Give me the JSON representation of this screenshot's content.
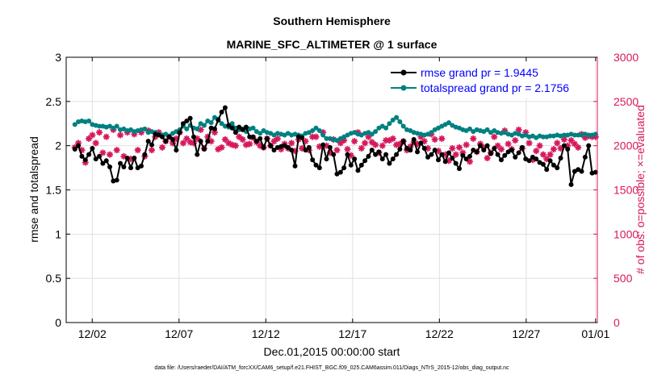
{
  "chart_data": {
    "type": "line",
    "title": "Southern Hemisphere",
    "subtitle": "MARINE_SFC_ALTIMETER @ 1 surface",
    "xlabel": "Dec.01,2015 00:00:00 start",
    "ylabel": "rmse and totalspread",
    "y2label": "# of obs: o=possible; ×=evaluated",
    "footnote": "data file: /Users/raeder/DAI/ATM_forcXX/CAM6_setup/f.e21.FHIST_BGC.f09_025.CAM6assim.011/Diags_NTrS_2015-12/obs_diag_output.nc",
    "xlim": [
      0.5,
      31.1
    ],
    "ylim": [
      0,
      3
    ],
    "y2lim": [
      0,
      3000
    ],
    "grid": true,
    "legend_position": "top-right",
    "x_ticks": [
      {
        "value": 2,
        "label": "12/02"
      },
      {
        "value": 7,
        "label": "12/07"
      },
      {
        "value": 12,
        "label": "12/12"
      },
      {
        "value": 17,
        "label": "12/17"
      },
      {
        "value": 22,
        "label": "12/22"
      },
      {
        "value": 27,
        "label": "12/27"
      },
      {
        "value": 31,
        "label": "01/01"
      }
    ],
    "y_ticks": [
      "0",
      "0.5",
      "1",
      "1.5",
      "2",
      "2.5",
      "3"
    ],
    "y2_ticks": [
      "0",
      "500",
      "1000",
      "1500",
      "2000",
      "2500",
      "3000"
    ],
    "colors": {
      "rmse": "#000000",
      "totalspread": "#008080",
      "obs": "#d6185c",
      "legend_text": "#0000ff"
    },
    "series": [
      {
        "name": "rmse grand pr = 1.9445",
        "axis": "left",
        "values": [
          1.96,
          2.0,
          1.88,
          1.84,
          1.9,
          1.97,
          1.85,
          1.88,
          1.8,
          1.83,
          1.76,
          1.6,
          1.61,
          1.8,
          1.76,
          1.86,
          1.75,
          1.86,
          1.75,
          1.77,
          1.9,
          2.05,
          2.01,
          2.13,
          2.12,
          2.1,
          2.05,
          2.1,
          2.07,
          1.95,
          2.15,
          2.25,
          2.28,
          2.31,
          2.1,
          1.9,
          2.05,
          1.96,
          2.05,
          2.2,
          2.19,
          2.29,
          2.38,
          2.43,
          2.23,
          2.2,
          2.15,
          2.21,
          2.18,
          2.21,
          2.1,
          2.1,
          2.05,
          2.08,
          1.98,
          2.08,
          2.0,
          1.95,
          1.98,
          1.99,
          2.0,
          1.98,
          1.95,
          1.77,
          2.1,
          2.09,
          1.95,
          1.98,
          1.84,
          1.78,
          1.75,
          2.01,
          1.85,
          1.98,
          1.9,
          1.68,
          1.7,
          1.75,
          1.9,
          1.78,
          1.85,
          1.72,
          1.78,
          1.83,
          1.88,
          1.95,
          1.9,
          1.93,
          1.85,
          1.9,
          1.8,
          1.85,
          1.9,
          1.96,
          2.05,
          1.97,
          1.95,
          2.07,
          1.93,
          2.03,
          1.97,
          1.87,
          1.9,
          1.95,
          1.84,
          1.9,
          1.82,
          1.92,
          1.86,
          1.8,
          1.74,
          1.89,
          1.85,
          1.88,
          1.95,
          1.93,
          2.0,
          1.95,
          2.0,
          1.91,
          1.97,
          1.9,
          1.84,
          1.89,
          1.93,
          1.95,
          1.87,
          1.92,
          1.98,
          1.85,
          1.83,
          1.87,
          1.85,
          1.81,
          1.79,
          1.73,
          1.83,
          1.78,
          1.75,
          1.86,
          2.0,
          1.96,
          1.56,
          1.71,
          1.73,
          1.71,
          1.87,
          2.0,
          1.69,
          1.7
        ]
      },
      {
        "name": "totalspread grand pr = 2.1756",
        "axis": "left",
        "values": [
          2.24,
          2.27,
          2.28,
          2.27,
          2.28,
          2.24,
          2.23,
          2.22,
          2.22,
          2.21,
          2.22,
          2.2,
          2.22,
          2.18,
          2.19,
          2.17,
          2.18,
          2.16,
          2.17,
          2.18,
          2.19,
          2.15,
          2.16,
          2.15,
          2.13,
          2.12,
          2.13,
          2.11,
          2.14,
          2.16,
          2.18,
          2.22,
          2.19,
          2.23,
          2.2,
          2.19,
          2.25,
          2.23,
          2.28,
          2.26,
          2.32,
          2.3,
          2.25,
          2.22,
          2.21,
          2.25,
          2.2,
          2.18,
          2.19,
          2.16,
          2.19,
          2.2,
          2.16,
          2.14,
          2.17,
          2.15,
          2.14,
          2.12,
          2.14,
          2.13,
          2.12,
          2.14,
          2.12,
          2.13,
          2.12,
          2.11,
          2.14,
          2.15,
          2.17,
          2.2,
          2.17,
          2.12,
          2.08,
          2.08,
          2.07,
          2.06,
          2.08,
          2.1,
          2.12,
          2.14,
          2.15,
          2.13,
          2.12,
          2.14,
          2.15,
          2.13,
          2.16,
          2.2,
          2.22,
          2.2,
          2.25,
          2.29,
          2.32,
          2.27,
          2.22,
          2.18,
          2.17,
          2.15,
          2.14,
          2.13,
          2.12,
          2.13,
          2.15,
          2.18,
          2.2,
          2.22,
          2.24,
          2.26,
          2.23,
          2.21,
          2.2,
          2.18,
          2.17,
          2.19,
          2.16,
          2.18,
          2.17,
          2.16,
          2.18,
          2.15,
          2.17,
          2.15,
          2.14,
          2.15,
          2.13,
          2.12,
          2.14,
          2.13,
          2.11,
          2.12,
          2.1,
          2.11,
          2.09,
          2.11,
          2.1,
          2.1,
          2.11,
          2.11,
          2.12,
          2.11,
          2.12,
          2.12,
          2.13,
          2.12,
          2.12,
          2.12,
          2.13,
          2.12,
          2.12,
          2.13
        ]
      },
      {
        "name": "obs evaluated",
        "axis": "right",
        "marker": "asterisk",
        "values": [
          1980,
          2030,
          1950,
          1810,
          2080,
          2120,
          2030,
          2150,
          1920,
          2100,
          1900,
          2180,
          1950,
          2120,
          1880,
          2150,
          1850,
          2130,
          1950,
          2150,
          1880,
          2170,
          1950,
          2100,
          2150,
          1980,
          2050,
          2100,
          2030,
          2080,
          2150,
          2030,
          2080,
          2040,
          2030,
          2080,
          2180,
          1970,
          2100,
          2050,
          2150,
          1960,
          1980,
          2070,
          2030,
          2010,
          2000,
          2100,
          2070,
          2010,
          2020,
          2090,
          2040,
          2000,
          1980,
          2080,
          2000,
          2050,
          2080,
          1960,
          2020,
          1970,
          2030,
          1940,
          2070,
          1970,
          2050,
          1950,
          2100,
          2100,
          1990,
          2150,
          2000,
          1920,
          2070,
          1950,
          2030,
          2060,
          1960,
          1890,
          2050,
          2150,
          1970,
          2030,
          2100,
          2040,
          2010,
          1920,
          2000,
          2060,
          2060,
          2080,
          2010,
          2020,
          2050,
          1950,
          1990,
          2040,
          2020,
          2100,
          2050,
          1970,
          2130,
          2070,
          1940,
          2080,
          1900,
          1830,
          1970,
          1900,
          1980,
          1920,
          2010,
          1820,
          2080,
          1930,
          2020,
          1980,
          1860,
          1920,
          2100,
          2000,
          1960,
          2170,
          2020,
          1960,
          2060,
          2180,
          1970,
          2150,
          2030,
          1840,
          1940,
          2000,
          1900,
          1850,
          1900,
          1960,
          2030,
          1970,
          2070,
          2000,
          2060,
          2020,
          1980,
          2130,
          2090,
          2110,
          2100,
          2100
        ]
      }
    ]
  }
}
